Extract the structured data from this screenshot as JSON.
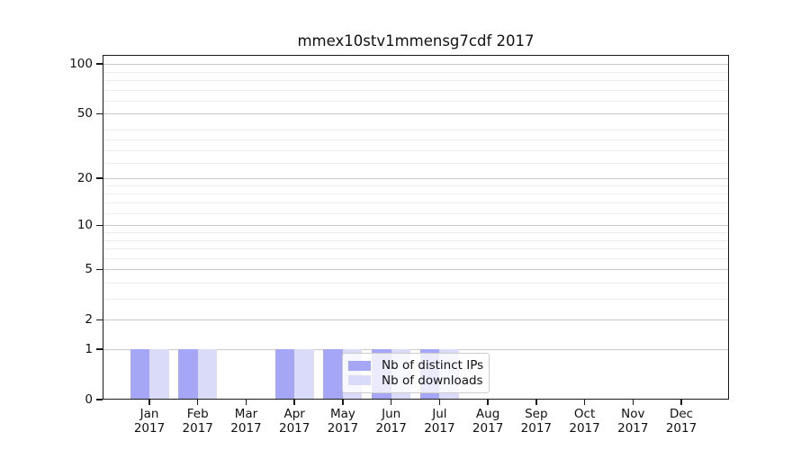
{
  "chart_data": {
    "type": "bar",
    "title": "mmex10stv1mmensg7cdf 2017",
    "categories": [
      "Jan",
      "Feb",
      "Mar",
      "Apr",
      "May",
      "Jun",
      "Jul",
      "Aug",
      "Sep",
      "Oct",
      "Nov",
      "Dec"
    ],
    "category_year": "2017",
    "series": [
      {
        "key": "distinct-ips",
        "name": "Nb of distinct IPs",
        "color": "#a6a6f6",
        "values": [
          1,
          1,
          0,
          1,
          1,
          1,
          1,
          0,
          0,
          0,
          0,
          0
        ]
      },
      {
        "key": "downloads",
        "name": "Nb of downloads",
        "color": "#dadaf9",
        "values": [
          1,
          1,
          0,
          1,
          1,
          1,
          1,
          0,
          0,
          0,
          0,
          0
        ]
      }
    ],
    "xlabel": "",
    "ylabel": "",
    "yscale": "log1p",
    "ylim": [
      0,
      113.6
    ],
    "y_major_ticks": [
      0,
      1,
      2,
      5,
      10,
      20,
      50,
      100
    ],
    "y_minor_ticks": [
      3,
      4,
      6,
      7,
      8,
      9,
      12,
      14,
      16,
      18,
      25,
      30,
      35,
      40,
      60,
      70,
      80,
      90
    ],
    "grid": true,
    "legend_position": "lower center"
  },
  "colors": {
    "bar_distinct_ips": "#a6a6f6",
    "bar_downloads": "#dadaf9",
    "major_grid": "#c9c9c9",
    "minor_grid": "#ececec",
    "spine": "#1a1a1a",
    "text": "#111111",
    "background": "#ffffff"
  }
}
